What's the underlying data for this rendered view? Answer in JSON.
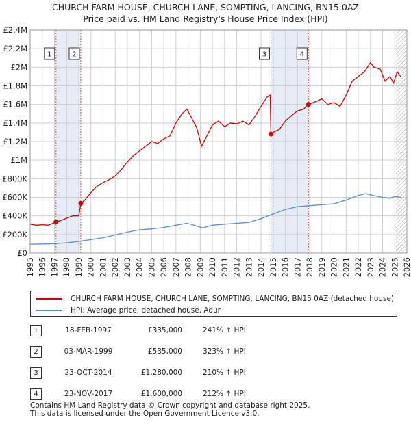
{
  "title_line1": "CHURCH FARM HOUSE, CHURCH LANE, SOMPTING, LANCING, BN15 0AZ",
  "title_line2": "Price paid vs. HM Land Registry's House Price Index (HPI)",
  "colors": {
    "property_line": "#cc0000",
    "hpi_line": "#5b8dc9",
    "shade": "#e6ecf5",
    "grid": "#cfcfcf",
    "marker_line": "#d05050"
  },
  "chart_data": {
    "type": "line",
    "x_range": [
      1995,
      2026
    ],
    "ylim": [
      0,
      2400000
    ],
    "y_ticks": [
      {
        "value": 0,
        "label": "£0"
      },
      {
        "value": 200000,
        "label": "£200K"
      },
      {
        "value": 400000,
        "label": "£400K"
      },
      {
        "value": 600000,
        "label": "£600K"
      },
      {
        "value": 800000,
        "label": "£800K"
      },
      {
        "value": 1000000,
        "label": "£1M"
      },
      {
        "value": 1200000,
        "label": "£1.2M"
      },
      {
        "value": 1400000,
        "label": "£1.4M"
      },
      {
        "value": 1600000,
        "label": "£1.6M"
      },
      {
        "value": 1800000,
        "label": "£1.8M"
      },
      {
        "value": 2000000,
        "label": "£2M"
      },
      {
        "value": 2200000,
        "label": "£2.2M"
      },
      {
        "value": 2400000,
        "label": "£2.4M"
      }
    ],
    "x_ticks": [
      "1995",
      "1996",
      "1997",
      "1998",
      "1999",
      "2000",
      "2001",
      "2002",
      "2003",
      "2004",
      "2005",
      "2006",
      "2007",
      "2008",
      "2009",
      "2010",
      "2011",
      "2012",
      "2013",
      "2014",
      "2015",
      "2016",
      "2017",
      "2018",
      "2019",
      "2020",
      "2021",
      "2022",
      "2023",
      "2024",
      "2025",
      "2026"
    ],
    "shaded_ranges": [
      [
        1997.13,
        1999.17
      ],
      [
        2014.81,
        2017.9
      ]
    ],
    "hatch_from": 2025.1,
    "series": [
      {
        "name": "CHURCH FARM HOUSE, CHURCH LANE, SOMPTING, LANCING, BN15 0AZ (detached house)",
        "points": [
          [
            1995.0,
            310000
          ],
          [
            1995.5,
            300000
          ],
          [
            1996.0,
            305000
          ],
          [
            1996.5,
            300000
          ],
          [
            1997.13,
            335000
          ],
          [
            1997.5,
            350000
          ],
          [
            1998.0,
            375000
          ],
          [
            1998.5,
            400000
          ],
          [
            1999.0,
            400000
          ],
          [
            1999.17,
            535000
          ],
          [
            1999.5,
            570000
          ],
          [
            2000.0,
            650000
          ],
          [
            2000.5,
            720000
          ],
          [
            2001.0,
            760000
          ],
          [
            2001.5,
            790000
          ],
          [
            2002.0,
            830000
          ],
          [
            2002.5,
            900000
          ],
          [
            2003.0,
            980000
          ],
          [
            2003.5,
            1050000
          ],
          [
            2004.0,
            1100000
          ],
          [
            2004.5,
            1150000
          ],
          [
            2005.0,
            1200000
          ],
          [
            2005.5,
            1180000
          ],
          [
            2006.0,
            1230000
          ],
          [
            2006.5,
            1260000
          ],
          [
            2007.0,
            1400000
          ],
          [
            2007.5,
            1500000
          ],
          [
            2007.9,
            1550000
          ],
          [
            2008.3,
            1450000
          ],
          [
            2008.7,
            1350000
          ],
          [
            2009.1,
            1150000
          ],
          [
            2009.5,
            1250000
          ],
          [
            2010.0,
            1380000
          ],
          [
            2010.5,
            1420000
          ],
          [
            2011.0,
            1360000
          ],
          [
            2011.5,
            1400000
          ],
          [
            2012.0,
            1390000
          ],
          [
            2012.5,
            1420000
          ],
          [
            2013.0,
            1380000
          ],
          [
            2013.5,
            1470000
          ],
          [
            2014.0,
            1580000
          ],
          [
            2014.5,
            1680000
          ],
          [
            2014.75,
            1700000
          ],
          [
            2014.81,
            1280000
          ],
          [
            2015.0,
            1300000
          ],
          [
            2015.5,
            1330000
          ],
          [
            2016.0,
            1420000
          ],
          [
            2016.5,
            1480000
          ],
          [
            2017.0,
            1530000
          ],
          [
            2017.5,
            1550000
          ],
          [
            2017.9,
            1600000
          ],
          [
            2018.5,
            1630000
          ],
          [
            2019.0,
            1660000
          ],
          [
            2019.5,
            1600000
          ],
          [
            2020.0,
            1620000
          ],
          [
            2020.5,
            1580000
          ],
          [
            2021.0,
            1700000
          ],
          [
            2021.5,
            1850000
          ],
          [
            2022.0,
            1900000
          ],
          [
            2022.5,
            1950000
          ],
          [
            2023.0,
            2050000
          ],
          [
            2023.3,
            2000000
          ],
          [
            2023.8,
            1980000
          ],
          [
            2024.2,
            1850000
          ],
          [
            2024.6,
            1900000
          ],
          [
            2024.9,
            1830000
          ],
          [
            2025.2,
            1950000
          ],
          [
            2025.5,
            1900000
          ]
        ]
      },
      {
        "name": "HPI: Average price, detached house, Adur",
        "points": [
          [
            1995.0,
            95000
          ],
          [
            1996.0,
            97000
          ],
          [
            1997.0,
            100000
          ],
          [
            1998.0,
            110000
          ],
          [
            1999.0,
            125000
          ],
          [
            2000.0,
            145000
          ],
          [
            2001.0,
            165000
          ],
          [
            2002.0,
            195000
          ],
          [
            2003.0,
            225000
          ],
          [
            2004.0,
            250000
          ],
          [
            2005.0,
            260000
          ],
          [
            2006.0,
            275000
          ],
          [
            2007.0,
            300000
          ],
          [
            2007.9,
            320000
          ],
          [
            2008.5,
            300000
          ],
          [
            2009.2,
            270000
          ],
          [
            2010.0,
            300000
          ],
          [
            2011.0,
            310000
          ],
          [
            2012.0,
            320000
          ],
          [
            2013.0,
            330000
          ],
          [
            2014.0,
            370000
          ],
          [
            2015.0,
            420000
          ],
          [
            2016.0,
            470000
          ],
          [
            2017.0,
            500000
          ],
          [
            2018.0,
            510000
          ],
          [
            2019.0,
            520000
          ],
          [
            2020.0,
            530000
          ],
          [
            2021.0,
            570000
          ],
          [
            2022.0,
            620000
          ],
          [
            2022.6,
            640000
          ],
          [
            2023.2,
            620000
          ],
          [
            2024.0,
            600000
          ],
          [
            2024.6,
            590000
          ],
          [
            2025.0,
            610000
          ],
          [
            2025.5,
            600000
          ]
        ]
      }
    ],
    "sales": [
      {
        "label": "1",
        "x": 1997.13,
        "value": 335000
      },
      {
        "label": "2",
        "x": 1999.17,
        "value": 535000
      },
      {
        "label": "3",
        "x": 2014.81,
        "value": 1280000
      },
      {
        "label": "4",
        "x": 2017.9,
        "value": 1600000
      }
    ]
  },
  "legend": {
    "property_label": "CHURCH FARM HOUSE, CHURCH LANE, SOMPTING, LANCING, BN15 0AZ (detached house)",
    "hpi_label": "HPI: Average price, detached house, Adur"
  },
  "transactions": [
    {
      "num": "1",
      "date": "18-FEB-1997",
      "price": "£335,000",
      "hpi": "241% ↑ HPI"
    },
    {
      "num": "2",
      "date": "03-MAR-1999",
      "price": "£535,000",
      "hpi": "323% ↑ HPI"
    },
    {
      "num": "3",
      "date": "23-OCT-2014",
      "price": "£1,280,000",
      "hpi": "210% ↑ HPI"
    },
    {
      "num": "4",
      "date": "23-NOV-2017",
      "price": "£1,600,000",
      "hpi": "212% ↑ HPI"
    }
  ],
  "footer_line1": "Contains HM Land Registry data © Crown copyright and database right 2025.",
  "footer_line2": "This data is licensed under the Open Government Licence v3.0."
}
